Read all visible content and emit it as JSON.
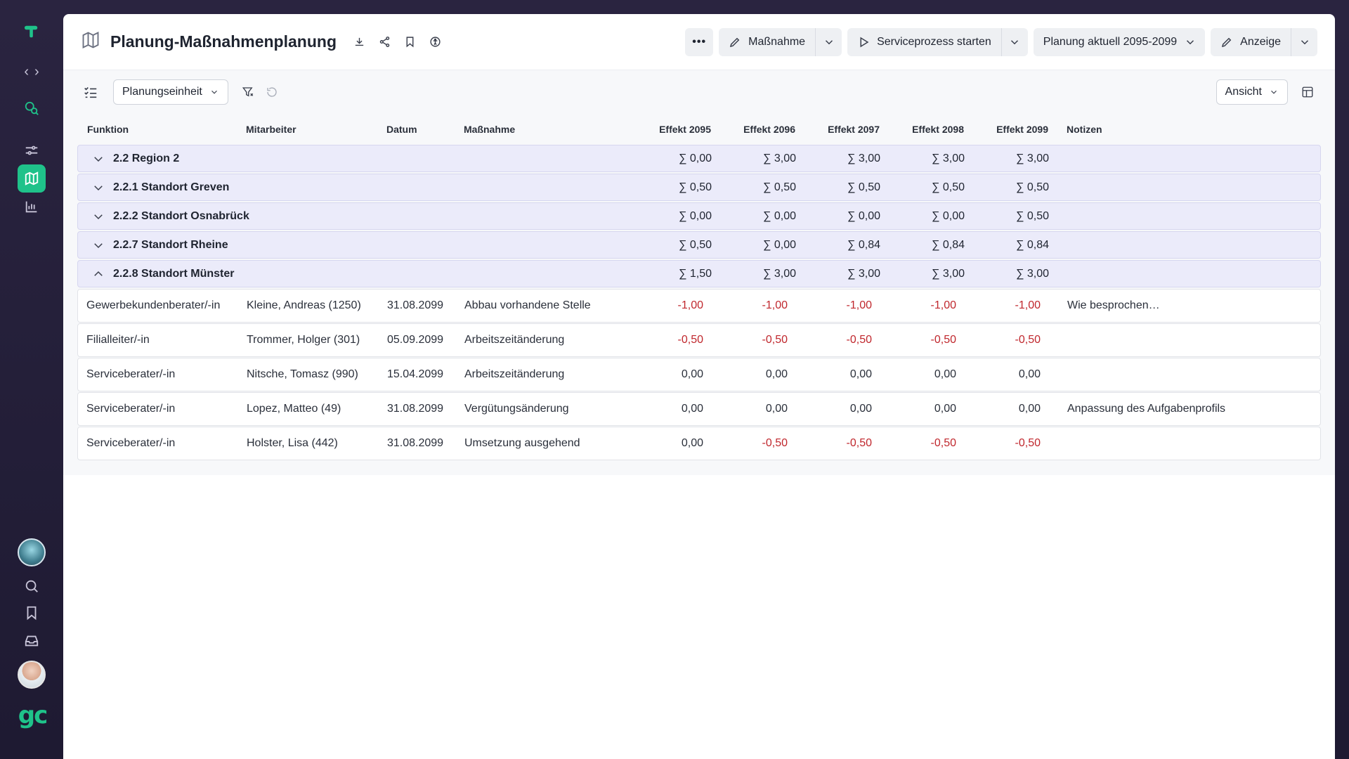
{
  "header": {
    "title": "Planung-Maßnahmenplanung",
    "more_label": "•••",
    "massnahme_label": "Maßnahme",
    "service_label": "Serviceprozess starten",
    "plan_label": "Planung aktuell 2095-2099",
    "anzeige_label": "Anzeige"
  },
  "toolbar": {
    "group_select": "Planungseinheit",
    "view_select": "Ansicht"
  },
  "columns": {
    "funktion": "Funktion",
    "mitarbeiter": "Mitarbeiter",
    "datum": "Datum",
    "massnahme": "Maßnahme",
    "e2095": "Effekt 2095",
    "e2096": "Effekt 2096",
    "e2097": "Effekt 2097",
    "e2098": "Effekt 2098",
    "e2099": "Effekt 2099",
    "notizen": "Notizen"
  },
  "groups": [
    {
      "label": "2.2 Region 2",
      "expanded": false,
      "e": [
        "∑ 0,00",
        "∑ 3,00",
        "∑ 3,00",
        "∑ 3,00",
        "∑ 3,00"
      ]
    },
    {
      "label": "2.2.1 Standort Greven",
      "expanded": false,
      "e": [
        "∑ 0,50",
        "∑ 0,50",
        "∑ 0,50",
        "∑ 0,50",
        "∑ 0,50"
      ]
    },
    {
      "label": "2.2.2 Standort Osnabrück",
      "expanded": false,
      "e": [
        "∑ 0,00",
        "∑ 0,00",
        "∑ 0,00",
        "∑ 0,00",
        "∑ 0,50"
      ]
    },
    {
      "label": "2.2.7 Standort Rheine",
      "expanded": false,
      "e": [
        "∑ 0,50",
        "∑ 0,00",
        "∑ 0,84",
        "∑ 0,84",
        "∑ 0,84"
      ]
    },
    {
      "label": "2.2.8 Standort Münster",
      "expanded": true,
      "e": [
        "∑ 1,50",
        "∑ 3,00",
        "∑ 3,00",
        "∑ 3,00",
        "∑ 3,00"
      ]
    }
  ],
  "rows": [
    {
      "funktion": "Gewerbekundenberater/-in",
      "mitarbeiter": "Kleine, Andreas (1250)",
      "datum": "31.08.2099",
      "massnahme": "Abbau vorhandene Stelle",
      "e": [
        "-1,00",
        "-1,00",
        "-1,00",
        "-1,00",
        "-1,00"
      ],
      "notizen": "Wie besprochen…"
    },
    {
      "funktion": "Filialleiter/-in",
      "mitarbeiter": "Trommer, Holger (301)",
      "datum": "05.09.2099",
      "massnahme": "Arbeitszeitänderung",
      "e": [
        "-0,50",
        "-0,50",
        "-0,50",
        "-0,50",
        "-0,50"
      ],
      "notizen": ""
    },
    {
      "funktion": "Serviceberater/-in",
      "mitarbeiter": "Nitsche, Tomasz (990)",
      "datum": "15.04.2099",
      "massnahme": "Arbeitszeitänderung",
      "e": [
        "0,00",
        "0,00",
        "0,00",
        "0,00",
        "0,00"
      ],
      "notizen": ""
    },
    {
      "funktion": "Serviceberater/-in",
      "mitarbeiter": "Lopez, Matteo (49)",
      "datum": "31.08.2099",
      "massnahme": "Vergütungsänderung",
      "e": [
        "0,00",
        "0,00",
        "0,00",
        "0,00",
        "0,00"
      ],
      "notizen": "Anpassung des Aufgabenprofils"
    },
    {
      "funktion": "Serviceberater/-in",
      "mitarbeiter": "Holster, Lisa (442)",
      "datum": "31.08.2099",
      "massnahme": "Umsetzung ausgehend",
      "e": [
        "0,00",
        "-0,50",
        "-0,50",
        "-0,50",
        "-0,50"
      ],
      "notizen": ""
    }
  ],
  "colors": {
    "accent": "#1fc28a",
    "negative": "#c0272d",
    "group_bg": "#ebebfa"
  }
}
